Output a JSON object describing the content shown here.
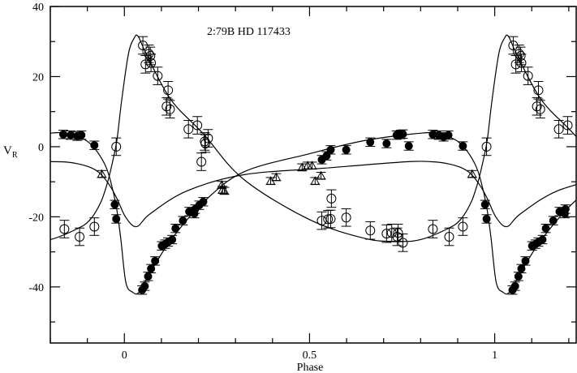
{
  "chart_data": {
    "type": "scatter",
    "annotation": "2:79B   HD 117433",
    "xlabel": "Phase",
    "ylabel": "V",
    "ylabel_sub": "R",
    "xlim": [
      -0.2,
      1.22
    ],
    "ylim": [
      -56,
      40
    ],
    "x_ticks": [
      0,
      0.5,
      1
    ],
    "x_tick_labels": [
      "0",
      "0.5",
      "1"
    ],
    "x_minor_step": 0.1,
    "y_ticks": [
      -40,
      -20,
      0,
      20,
      40
    ],
    "y_tick_labels": [
      "-40",
      "-20",
      "0",
      "20",
      "40"
    ],
    "y_minor_step": 10,
    "grid": false,
    "series": [
      {
        "marker": "filled-circle",
        "yerr": 1.2,
        "points": [
          [
            -0.165,
            3.5
          ],
          [
            -0.145,
            3.3
          ],
          [
            -0.127,
            3.0
          ],
          [
            -0.116,
            3.3
          ],
          [
            -0.081,
            0.4
          ],
          [
            -0.026,
            -16.5
          ],
          [
            -0.022,
            -20.6
          ],
          [
            0.048,
            -40.9
          ],
          [
            0.055,
            -39.8
          ],
          [
            0.064,
            -37.0
          ],
          [
            0.072,
            -34.8
          ],
          [
            0.083,
            -32.6
          ],
          [
            0.101,
            -28.3
          ],
          [
            0.11,
            -27.8
          ],
          [
            0.118,
            -27.2
          ],
          [
            0.129,
            -26.5
          ],
          [
            0.138,
            -23.3
          ],
          [
            0.158,
            -21.1
          ],
          [
            0.175,
            -18.5
          ],
          [
            0.189,
            -19.1
          ],
          [
            0.191,
            -17.8
          ],
          [
            0.202,
            -16.7
          ],
          [
            0.213,
            -15.7
          ],
          [
            0.533,
            -3.7
          ],
          [
            0.546,
            -2.6
          ],
          [
            0.557,
            -0.9
          ],
          [
            0.599,
            -0.9
          ],
          [
            0.664,
            1.3
          ],
          [
            0.708,
            0.9
          ],
          [
            0.735,
            3.3
          ],
          [
            0.746,
            3.5
          ],
          [
            0.752,
            3.6
          ],
          [
            0.768,
            0.2
          ],
          [
            0.833,
            3.5
          ],
          [
            0.849,
            3.3
          ],
          [
            0.862,
            2.8
          ],
          [
            0.875,
            3.3
          ],
          [
            0.914,
            0.2
          ],
          [
            0.974,
            -16.5
          ],
          [
            0.978,
            -20.6
          ],
          [
            1.048,
            -40.9
          ],
          [
            1.055,
            -39.8
          ],
          [
            1.064,
            -37.0
          ],
          [
            1.072,
            -34.8
          ],
          [
            1.083,
            -32.6
          ],
          [
            1.101,
            -28.3
          ],
          [
            1.11,
            -27.8
          ],
          [
            1.118,
            -27.2
          ],
          [
            1.129,
            -26.5
          ],
          [
            1.138,
            -23.3
          ],
          [
            1.158,
            -21.1
          ],
          [
            1.175,
            -18.5
          ],
          [
            1.189,
            -19.1
          ],
          [
            1.191,
            -17.8
          ]
        ]
      },
      {
        "marker": "open-circle",
        "yerr": 2.5,
        "points": [
          [
            -0.162,
            -23.5
          ],
          [
            -0.121,
            -25.7
          ],
          [
            -0.081,
            -22.8
          ],
          [
            -0.022,
            0.0
          ],
          [
            0.05,
            28.9
          ],
          [
            0.057,
            23.5
          ],
          [
            0.066,
            26.5
          ],
          [
            0.07,
            25.9
          ],
          [
            0.072,
            23.9
          ],
          [
            0.09,
            20.2
          ],
          [
            0.118,
            16.1
          ],
          [
            0.114,
            11.5
          ],
          [
            0.123,
            10.7
          ],
          [
            0.173,
            5.0
          ],
          [
            0.197,
            6.1
          ],
          [
            0.208,
            -4.3
          ],
          [
            0.217,
            1.5
          ],
          [
            0.219,
            0.9
          ],
          [
            0.226,
            2.4
          ],
          [
            0.533,
            -21.1
          ],
          [
            0.55,
            -20.7
          ],
          [
            0.557,
            -20.6
          ],
          [
            0.559,
            -14.8
          ],
          [
            0.599,
            -20.2
          ],
          [
            0.664,
            -23.9
          ],
          [
            0.708,
            -24.8
          ],
          [
            0.722,
            -24.6
          ],
          [
            0.739,
            -24.6
          ],
          [
            0.737,
            -25.7
          ],
          [
            0.752,
            -27.4
          ],
          [
            0.833,
            -23.5
          ],
          [
            0.877,
            -25.7
          ],
          [
            0.914,
            -22.8
          ],
          [
            0.978,
            0.0
          ],
          [
            1.05,
            28.9
          ],
          [
            1.057,
            23.5
          ],
          [
            1.066,
            26.5
          ],
          [
            1.07,
            25.9
          ],
          [
            1.072,
            23.9
          ],
          [
            1.09,
            20.2
          ],
          [
            1.118,
            16.1
          ],
          [
            1.114,
            11.5
          ],
          [
            1.123,
            10.7
          ],
          [
            1.173,
            5.0
          ],
          [
            1.197,
            6.1
          ]
        ]
      },
      {
        "marker": "open-triangle",
        "yerr": 1.0,
        "points": [
          [
            -0.061,
            -7.8
          ],
          [
            0.263,
            -10.9
          ],
          [
            0.265,
            -12.3
          ],
          [
            0.27,
            -12.6
          ],
          [
            0.395,
            -9.8
          ],
          [
            0.41,
            -8.7
          ],
          [
            0.48,
            -5.9
          ],
          [
            0.495,
            -5.4
          ],
          [
            0.507,
            -5.4
          ],
          [
            0.515,
            -9.8
          ],
          [
            0.531,
            -8.3
          ],
          [
            0.939,
            -7.8
          ]
        ]
      }
    ],
    "model_curves": [
      {
        "for_series": "filled-circle",
        "periodic": true,
        "points": [
          [
            0.004,
            -38.7
          ],
          [
            0.022,
            -41.5
          ],
          [
            0.04,
            -41.5
          ],
          [
            0.07,
            -35.9
          ],
          [
            0.125,
            -26.7
          ],
          [
            0.213,
            -15.9
          ],
          [
            0.322,
            -7.2
          ],
          [
            0.5,
            -2.0
          ],
          [
            0.651,
            1.8
          ],
          [
            0.805,
            3.9
          ],
          [
            0.85,
            3.6
          ],
          [
            0.893,
            2.0
          ],
          [
            0.92,
            -0.5
          ],
          [
            0.947,
            -5.0
          ],
          [
            0.962,
            -9.5
          ],
          [
            0.978,
            -17.0
          ],
          [
            0.99,
            -26.0
          ]
        ]
      },
      {
        "for_series": "open-circle",
        "periodic": true,
        "points": [
          [
            -0.007,
            13.5
          ],
          [
            0.011,
            26.5
          ],
          [
            0.026,
            30.9
          ],
          [
            0.037,
            31.5
          ],
          [
            0.059,
            26.5
          ],
          [
            0.125,
            13.5
          ],
          [
            0.213,
            3.7
          ],
          [
            0.322,
            -9.3
          ],
          [
            0.5,
            -20.8
          ],
          [
            0.651,
            -26.2
          ],
          [
            0.74,
            -27.0
          ],
          [
            0.8,
            -26.5
          ],
          [
            0.871,
            -23.5
          ],
          [
            0.906,
            -21.0
          ],
          [
            0.936,
            -15.9
          ],
          [
            0.955,
            -10.0
          ],
          [
            0.969,
            -3.9
          ],
          [
            0.98,
            2.0
          ]
        ]
      },
      {
        "for_series": "open-triangle",
        "periodic": true,
        "points": [
          [
            0.004,
            -20.2
          ],
          [
            0.033,
            -22.8
          ],
          [
            0.07,
            -19.1
          ],
          [
            0.169,
            -12.6
          ],
          [
            0.322,
            -8.0
          ],
          [
            0.542,
            -6.1
          ],
          [
            0.761,
            -4.3
          ],
          [
            0.83,
            -4.3
          ],
          [
            0.871,
            -4.8
          ],
          [
            0.91,
            -6.0
          ],
          [
            0.936,
            -7.8
          ],
          [
            0.96,
            -11.0
          ],
          [
            0.98,
            -14.8
          ]
        ]
      }
    ]
  }
}
